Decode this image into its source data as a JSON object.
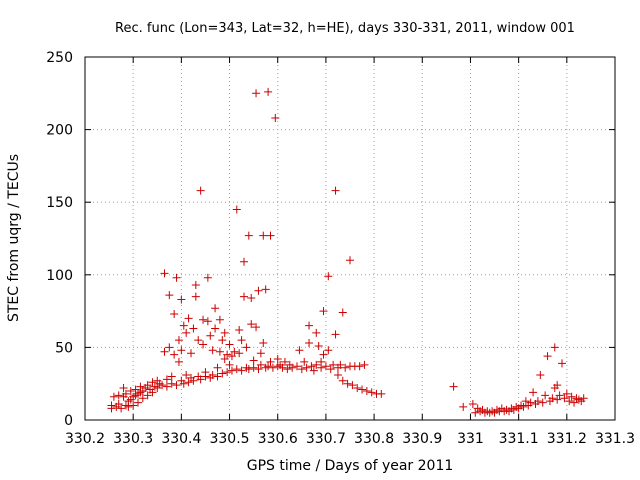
{
  "chart_data": {
    "type": "scatter",
    "title": "Rec. func (Lon=343, Lat=32, h=HE), days 330-331, 2011, window 001",
    "xlabel": "GPS time / Days of year 2011",
    "ylabel": "STEC from uqrg / TECUs",
    "xlim": [
      330.2,
      331.3
    ],
    "ylim": [
      0,
      250
    ],
    "xticks": [
      "330.2",
      "330.3",
      "330.4",
      "330.5",
      "330.6",
      "330.7",
      "330.8",
      "330.9",
      "331",
      "331.1",
      "331.2",
      "331.3"
    ],
    "yticks": [
      "0",
      "50",
      "100",
      "150",
      "200",
      "250"
    ],
    "grid": true,
    "marker": "+",
    "color": "#cc0000",
    "series": [
      {
        "name": "STEC",
        "points": [
          [
            330.255,
            8
          ],
          [
            330.255,
            10
          ],
          [
            330.26,
            16
          ],
          [
            330.265,
            9
          ],
          [
            330.27,
            17
          ],
          [
            330.27,
            11
          ],
          [
            330.275,
            8
          ],
          [
            330.28,
            16
          ],
          [
            330.28,
            22
          ],
          [
            330.285,
            10
          ],
          [
            330.285,
            18
          ],
          [
            330.29,
            9
          ],
          [
            330.29,
            13
          ],
          [
            330.295,
            14
          ],
          [
            330.295,
            20
          ],
          [
            330.3,
            10
          ],
          [
            330.3,
            16
          ],
          [
            330.305,
            17
          ],
          [
            330.305,
            21
          ],
          [
            330.31,
            12
          ],
          [
            330.31,
            18
          ],
          [
            330.315,
            19
          ],
          [
            330.315,
            23
          ],
          [
            330.32,
            15
          ],
          [
            330.32,
            20
          ],
          [
            330.325,
            22
          ],
          [
            330.33,
            17
          ],
          [
            330.33,
            24
          ],
          [
            330.335,
            21
          ],
          [
            330.34,
            19
          ],
          [
            330.34,
            26
          ],
          [
            330.345,
            23
          ],
          [
            330.35,
            22
          ],
          [
            330.35,
            27
          ],
          [
            330.355,
            25
          ],
          [
            330.36,
            24
          ],
          [
            330.365,
            47
          ],
          [
            330.365,
            101
          ],
          [
            330.37,
            23
          ],
          [
            330.37,
            28
          ],
          [
            330.375,
            50
          ],
          [
            330.375,
            86
          ],
          [
            330.38,
            25
          ],
          [
            330.38,
            30
          ],
          [
            330.385,
            45
          ],
          [
            330.385,
            73
          ],
          [
            330.39,
            24
          ],
          [
            330.39,
            98
          ],
          [
            330.395,
            40
          ],
          [
            330.395,
            55
          ],
          [
            330.4,
            27
          ],
          [
            330.4,
            48
          ],
          [
            330.4,
            83
          ],
          [
            330.405,
            25
          ],
          [
            330.405,
            65
          ],
          [
            330.41,
            31
          ],
          [
            330.41,
            60
          ],
          [
            330.415,
            26
          ],
          [
            330.415,
            70
          ],
          [
            330.42,
            29
          ],
          [
            330.42,
            46
          ],
          [
            330.425,
            27
          ],
          [
            330.425,
            63
          ],
          [
            330.43,
            85
          ],
          [
            330.43,
            93
          ],
          [
            330.435,
            30
          ],
          [
            330.435,
            55
          ],
          [
            330.44,
            28
          ],
          [
            330.44,
            158
          ],
          [
            330.445,
            52
          ],
          [
            330.445,
            69
          ],
          [
            330.45,
            30
          ],
          [
            330.45,
            33
          ],
          [
            330.455,
            98
          ],
          [
            330.455,
            68
          ],
          [
            330.46,
            29
          ],
          [
            330.46,
            58
          ],
          [
            330.465,
            31
          ],
          [
            330.465,
            48
          ],
          [
            330.47,
            77
          ],
          [
            330.47,
            63
          ],
          [
            330.475,
            30
          ],
          [
            330.475,
            36
          ],
          [
            330.48,
            47
          ],
          [
            330.48,
            69
          ],
          [
            330.485,
            32
          ],
          [
            330.485,
            55
          ],
          [
            330.49,
            42
          ],
          [
            330.49,
            60
          ],
          [
            330.495,
            33
          ],
          [
            330.495,
            45
          ],
          [
            330.5,
            38
          ],
          [
            330.5,
            52
          ],
          [
            330.505,
            34
          ],
          [
            330.505,
            44
          ],
          [
            330.51,
            47
          ],
          [
            330.515,
            145
          ],
          [
            330.515,
            35
          ],
          [
            330.52,
            46
          ],
          [
            330.52,
            62
          ],
          [
            330.525,
            34
          ],
          [
            330.525,
            55
          ],
          [
            330.53,
            85
          ],
          [
            330.53,
            109
          ],
          [
            330.535,
            36
          ],
          [
            330.535,
            50
          ],
          [
            330.54,
            35
          ],
          [
            330.54,
            127
          ],
          [
            330.545,
            66
          ],
          [
            330.545,
            84
          ],
          [
            330.55,
            36
          ],
          [
            330.55,
            41
          ],
          [
            330.555,
            225
          ],
          [
            330.555,
            64
          ],
          [
            330.56,
            35
          ],
          [
            330.56,
            89
          ],
          [
            330.565,
            38
          ],
          [
            330.565,
            46
          ],
          [
            330.57,
            127
          ],
          [
            330.57,
            53
          ],
          [
            330.575,
            36
          ],
          [
            330.575,
            90
          ],
          [
            330.58,
            37
          ],
          [
            330.58,
            226
          ],
          [
            330.585,
            127
          ],
          [
            330.585,
            40
          ],
          [
            330.59,
            36
          ],
          [
            330.595,
            208
          ],
          [
            330.6,
            37
          ],
          [
            330.6,
            42
          ],
          [
            330.605,
            38
          ],
          [
            330.61,
            36
          ],
          [
            330.615,
            40
          ],
          [
            330.62,
            35
          ],
          [
            330.625,
            38
          ],
          [
            330.63,
            36
          ],
          [
            330.64,
            37
          ],
          [
            330.645,
            48
          ],
          [
            330.65,
            35
          ],
          [
            330.655,
            40
          ],
          [
            330.66,
            36
          ],
          [
            330.665,
            53
          ],
          [
            330.665,
            65
          ],
          [
            330.67,
            37
          ],
          [
            330.675,
            34
          ],
          [
            330.68,
            38
          ],
          [
            330.68,
            60
          ],
          [
            330.685,
            51
          ],
          [
            330.69,
            36
          ],
          [
            330.69,
            40
          ],
          [
            330.695,
            75
          ],
          [
            330.695,
            45
          ],
          [
            330.7,
            37
          ],
          [
            330.705,
            99
          ],
          [
            330.705,
            48
          ],
          [
            330.71,
            35
          ],
          [
            330.715,
            38
          ],
          [
            330.72,
            158
          ],
          [
            330.72,
            59
          ],
          [
            330.725,
            36
          ],
          [
            330.725,
            31
          ],
          [
            330.73,
            38
          ],
          [
            330.735,
            27
          ],
          [
            330.735,
            74
          ],
          [
            330.74,
            36
          ],
          [
            330.745,
            25
          ],
          [
            330.75,
            110
          ],
          [
            330.75,
            37
          ],
          [
            330.755,
            24
          ],
          [
            330.76,
            37
          ],
          [
            330.765,
            22
          ],
          [
            330.77,
            37
          ],
          [
            330.775,
            21
          ],
          [
            330.78,
            38
          ],
          [
            330.785,
            20
          ],
          [
            330.795,
            19
          ],
          [
            330.805,
            18
          ],
          [
            330.815,
            18
          ],
          [
            330.965,
            23
          ],
          [
            330.985,
            9
          ],
          [
            331.005,
            11
          ],
          [
            331.01,
            5
          ],
          [
            331.015,
            8
          ],
          [
            331.02,
            6
          ],
          [
            331.025,
            7
          ],
          [
            331.03,
            5
          ],
          [
            331.035,
            6
          ],
          [
            331.04,
            5
          ],
          [
            331.045,
            6
          ],
          [
            331.05,
            5
          ],
          [
            331.055,
            7
          ],
          [
            331.06,
            6
          ],
          [
            331.065,
            8
          ],
          [
            331.07,
            6
          ],
          [
            331.075,
            7
          ],
          [
            331.08,
            6
          ],
          [
            331.085,
            8
          ],
          [
            331.09,
            7
          ],
          [
            331.095,
            9
          ],
          [
            331.1,
            8
          ],
          [
            331.105,
            10
          ],
          [
            331.11,
            9
          ],
          [
            331.115,
            13
          ],
          [
            331.12,
            10
          ],
          [
            331.125,
            12
          ],
          [
            331.13,
            19
          ],
          [
            331.135,
            11
          ],
          [
            331.14,
            13
          ],
          [
            331.145,
            31
          ],
          [
            331.15,
            12
          ],
          [
            331.155,
            17
          ],
          [
            331.16,
            44
          ],
          [
            331.165,
            13
          ],
          [
            331.17,
            15
          ],
          [
            331.175,
            50
          ],
          [
            331.175,
            22
          ],
          [
            331.18,
            14
          ],
          [
            331.18,
            24
          ],
          [
            331.185,
            17
          ],
          [
            331.19,
            39
          ],
          [
            331.195,
            15
          ],
          [
            331.2,
            18
          ],
          [
            331.205,
            13
          ],
          [
            331.21,
            16
          ],
          [
            331.215,
            12
          ],
          [
            331.22,
            15
          ],
          [
            331.225,
            14
          ],
          [
            331.23,
            13
          ],
          [
            331.235,
            15
          ]
        ]
      }
    ]
  }
}
